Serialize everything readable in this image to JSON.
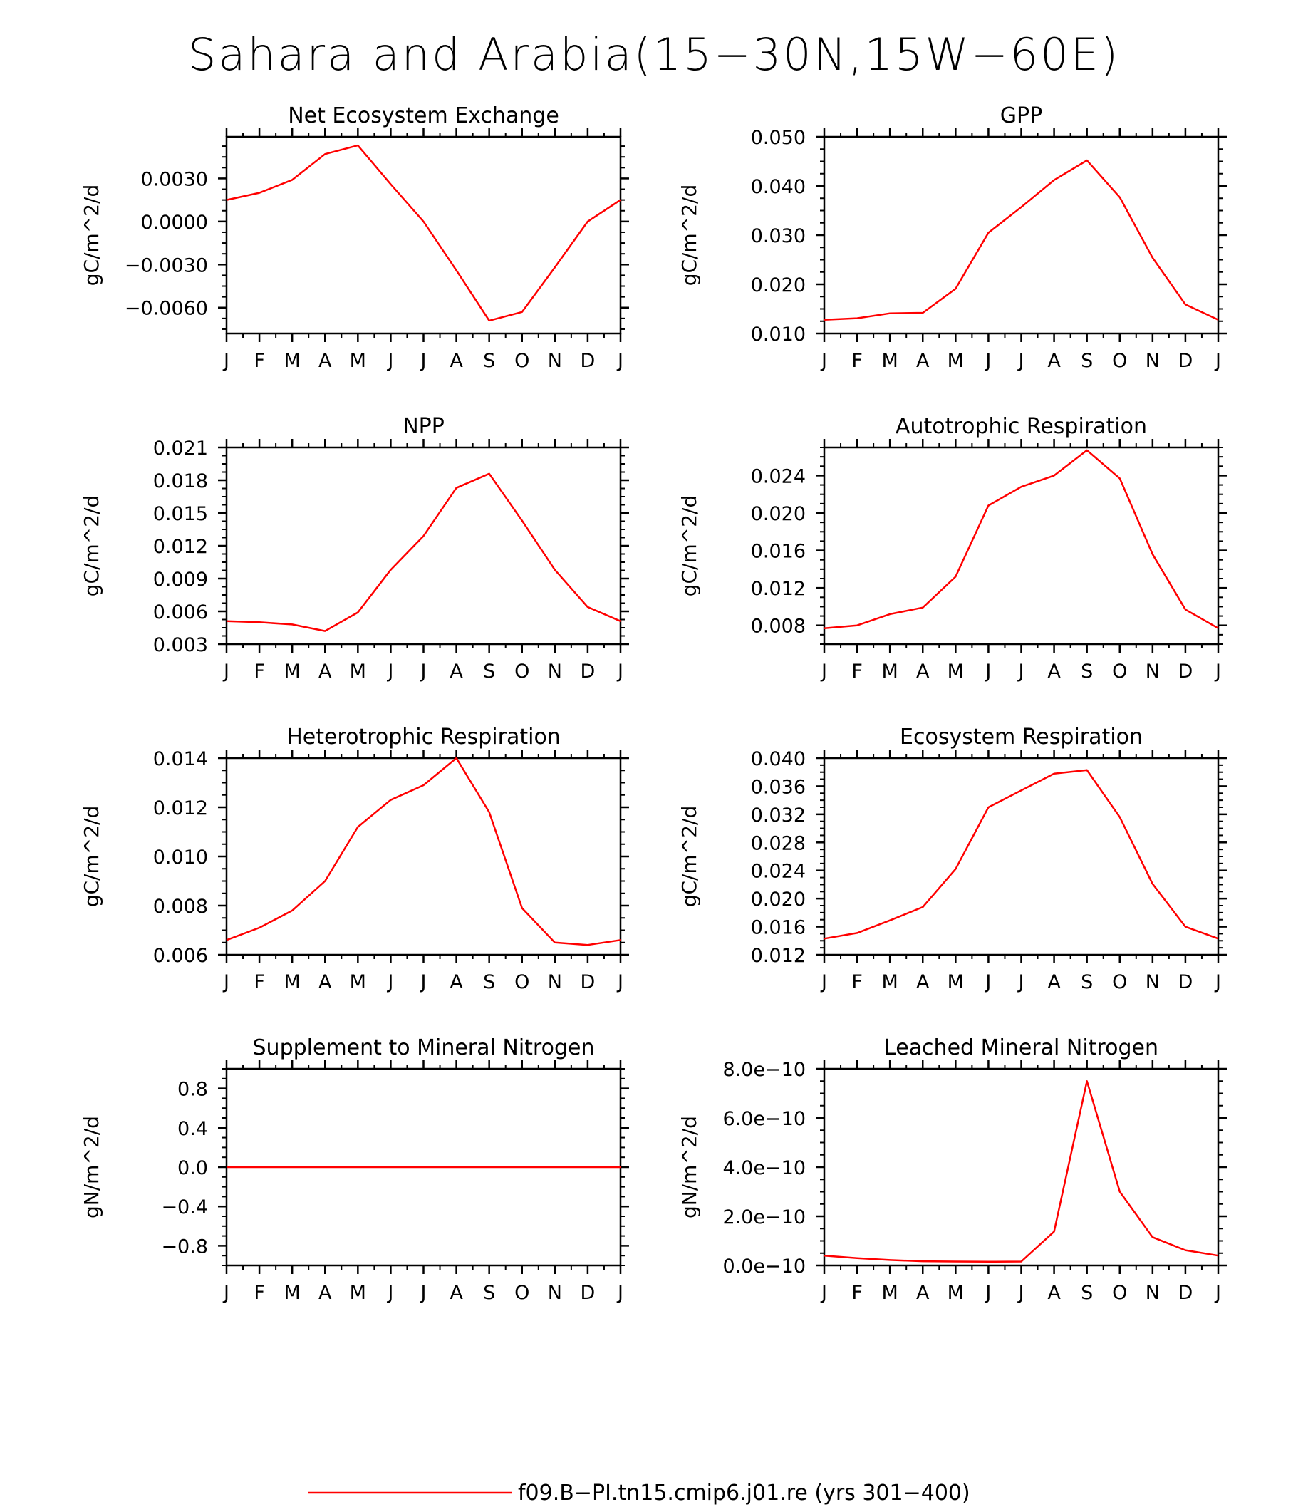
{
  "title": "Sahara and Arabia(15−30N,15W−60E)",
  "line_color": "#ff0000",
  "legend": {
    "label": "f09.B−PI.tn15.cmip6.j01.re (yrs 301−400)"
  },
  "chart_data": [
    {
      "type": "line",
      "title": "Net Ecosystem Exchange",
      "ylabel": "gC/m^2/d",
      "categories": [
        "J",
        "F",
        "M",
        "A",
        "M",
        "J",
        "J",
        "A",
        "S",
        "O",
        "N",
        "D",
        "J"
      ],
      "ylim": [
        -0.0078,
        0.0059
      ],
      "yticks": [
        0.003,
        0.0,
        -0.003,
        -0.006
      ],
      "yticklabels": [
        "0.0030",
        "0.0000",
        "−0.0030",
        "−0.0060"
      ],
      "values": [
        0.0015,
        0.002,
        0.0029,
        0.0047,
        0.0053,
        0.0026,
        0.0,
        -0.0034,
        -0.0069,
        -0.0063,
        -0.0032,
        0.0,
        0.0015
      ]
    },
    {
      "type": "line",
      "title": "GPP",
      "ylabel": "gC/m^2/d",
      "categories": [
        "J",
        "F",
        "M",
        "A",
        "M",
        "J",
        "J",
        "A",
        "S",
        "O",
        "N",
        "D",
        "J"
      ],
      "ylim": [
        0.01,
        0.05
      ],
      "yticks": [
        0.05,
        0.04,
        0.03,
        0.02,
        0.01
      ],
      "yticklabels": [
        "0.050",
        "0.040",
        "0.030",
        "0.020",
        "0.010"
      ],
      "values": [
        0.0128,
        0.0131,
        0.0141,
        0.0142,
        0.0191,
        0.0305,
        0.0357,
        0.0412,
        0.0452,
        0.0377,
        0.0254,
        0.0159,
        0.0128
      ]
    },
    {
      "type": "line",
      "title": "NPP",
      "ylabel": "gC/m^2/d",
      "categories": [
        "J",
        "F",
        "M",
        "A",
        "M",
        "J",
        "J",
        "A",
        "S",
        "O",
        "N",
        "D",
        "J"
      ],
      "ylim": [
        0.003,
        0.021
      ],
      "yticks": [
        0.021,
        0.018,
        0.015,
        0.012,
        0.009,
        0.006,
        0.003
      ],
      "yticklabels": [
        "0.021",
        "0.018",
        "0.015",
        "0.012",
        "0.009",
        "0.006",
        "0.003"
      ],
      "values": [
        0.0051,
        0.005,
        0.0048,
        0.0042,
        0.0059,
        0.0098,
        0.0129,
        0.0173,
        0.0186,
        0.0143,
        0.0098,
        0.0064,
        0.0051
      ]
    },
    {
      "type": "line",
      "title": "Autotrophic Respiration",
      "ylabel": "gC/m^2/d",
      "categories": [
        "J",
        "F",
        "M",
        "A",
        "M",
        "J",
        "J",
        "A",
        "S",
        "O",
        "N",
        "D",
        "J"
      ],
      "ylim": [
        0.006,
        0.027
      ],
      "yticks": [
        0.024,
        0.02,
        0.016,
        0.012,
        0.008
      ],
      "yticklabels": [
        "0.024",
        "0.020",
        "0.016",
        "0.012",
        "0.008"
      ],
      "values": [
        0.0077,
        0.008,
        0.0092,
        0.0099,
        0.0132,
        0.0208,
        0.0228,
        0.024,
        0.0267,
        0.0237,
        0.0156,
        0.0097,
        0.0077
      ]
    },
    {
      "type": "line",
      "title": "Heterotrophic Respiration",
      "ylabel": "gC/m^2/d",
      "categories": [
        "J",
        "F",
        "M",
        "A",
        "M",
        "J",
        "J",
        "A",
        "S",
        "O",
        "N",
        "D",
        "J"
      ],
      "ylim": [
        0.006,
        0.014
      ],
      "yticks": [
        0.014,
        0.012,
        0.01,
        0.008,
        0.006
      ],
      "yticklabels": [
        "0.014",
        "0.012",
        "0.010",
        "0.008",
        "0.006"
      ],
      "values": [
        0.0066,
        0.0071,
        0.0078,
        0.009,
        0.0112,
        0.0123,
        0.0129,
        0.014,
        0.0118,
        0.0079,
        0.0065,
        0.0064,
        0.0066
      ]
    },
    {
      "type": "line",
      "title": "Ecosystem Respiration",
      "ylabel": "gC/m^2/d",
      "categories": [
        "J",
        "F",
        "M",
        "A",
        "M",
        "J",
        "J",
        "A",
        "S",
        "O",
        "N",
        "D",
        "J"
      ],
      "ylim": [
        0.012,
        0.04
      ],
      "yticks": [
        0.04,
        0.036,
        0.032,
        0.028,
        0.024,
        0.02,
        0.016,
        0.012
      ],
      "yticklabels": [
        "0.040",
        "0.036",
        "0.032",
        "0.028",
        "0.024",
        "0.020",
        "0.016",
        "0.012"
      ],
      "values": [
        0.0143,
        0.0151,
        0.0169,
        0.0188,
        0.0242,
        0.033,
        0.0354,
        0.0378,
        0.0383,
        0.0316,
        0.0221,
        0.016,
        0.0143
      ]
    },
    {
      "type": "line",
      "title": "Supplement to Mineral Nitrogen",
      "ylabel": "gN/m^2/d",
      "categories": [
        "J",
        "F",
        "M",
        "A",
        "M",
        "J",
        "J",
        "A",
        "S",
        "O",
        "N",
        "D",
        "J"
      ],
      "ylim": [
        -1.0,
        1.0
      ],
      "yticks": [
        0.8,
        0.4,
        0.0,
        -0.4,
        -0.8
      ],
      "yticklabels": [
        "0.8",
        "0.4",
        "0.0",
        "−0.4",
        "−0.8"
      ],
      "values": [
        0,
        0,
        0,
        0,
        0,
        0,
        0,
        0,
        0,
        0,
        0,
        0,
        0
      ]
    },
    {
      "type": "line",
      "title": "Leached Mineral Nitrogen",
      "ylabel": "gN/m^2/d",
      "categories": [
        "J",
        "F",
        "M",
        "A",
        "M",
        "J",
        "J",
        "A",
        "S",
        "O",
        "N",
        "D",
        "J"
      ],
      "ylim": [
        0.0,
        8e-10
      ],
      "yticks": [
        8e-10,
        6e-10,
        4e-10,
        2e-10,
        0.0
      ],
      "yticklabels": [
        "8.0e−10",
        "6.0e−10",
        "4.0e−10",
        "2.0e−10",
        "0.0e−10"
      ],
      "values": [
        4e-11,
        3e-11,
        2.2e-11,
        1.7e-11,
        1.6e-11,
        1.5e-11,
        1.6e-11,
        1.38e-10,
        7.5e-10,
        3e-10,
        1.15e-10,
        6.2e-11,
        4e-11
      ]
    }
  ]
}
